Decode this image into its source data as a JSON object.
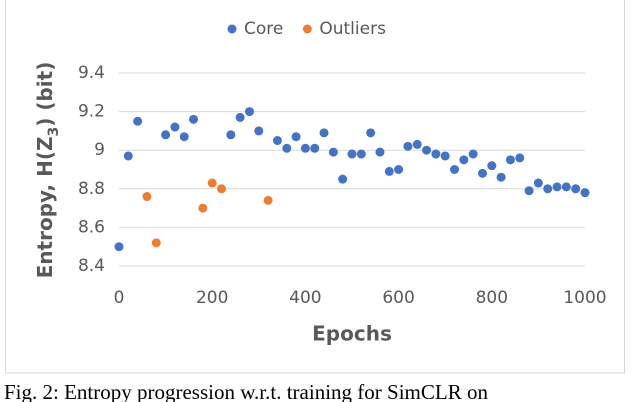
{
  "chart_data": {
    "type": "scatter",
    "legend_position": "top",
    "grid": true,
    "x_label": "Epochs",
    "y_label": {
      "text": "Entropy, H(Z",
      "subscript": "3",
      "suffix": ") (bit)"
    },
    "xlim": [
      0,
      1000
    ],
    "xticks": [
      0,
      200,
      400,
      600,
      800,
      1000
    ],
    "ylim": [
      8.4,
      9.4
    ],
    "yticks": [
      9.4,
      9.2,
      9,
      8.8,
      8.6,
      8.4
    ],
    "series": [
      {
        "name": "Core",
        "color": "#4472c4",
        "x": [
          0,
          20,
          40,
          100,
          120,
          140,
          160,
          240,
          260,
          280,
          300,
          340,
          360,
          380,
          400,
          420,
          440,
          460,
          480,
          500,
          520,
          540,
          560,
          580,
          600,
          620,
          640,
          660,
          680,
          700,
          720,
          740,
          760,
          780,
          800,
          820,
          840,
          860,
          880,
          900,
          920,
          940,
          960,
          980,
          1000
        ],
        "values": [
          8.5,
          8.97,
          9.15,
          9.08,
          9.12,
          9.07,
          9.16,
          9.08,
          9.17,
          9.2,
          9.1,
          9.05,
          9.01,
          9.07,
          9.01,
          9.01,
          9.09,
          8.99,
          8.85,
          8.98,
          8.98,
          9.09,
          8.99,
          8.89,
          8.9,
          9.02,
          9.03,
          9.0,
          8.98,
          8.97,
          8.9,
          8.95,
          8.98,
          8.88,
          8.92,
          8.86,
          8.95,
          8.96,
          8.79,
          8.83,
          8.8,
          8.81,
          8.81,
          8.8,
          8.78
        ]
      },
      {
        "name": "Outliers",
        "color": "#ed7d31",
        "x": [
          60,
          80,
          180,
          200,
          220,
          320
        ],
        "values": [
          8.76,
          8.52,
          8.7,
          8.83,
          8.8,
          8.74
        ]
      }
    ]
  },
  "caption": "Fig. 2: Entropy progression w.r.t. training for SimCLR on"
}
